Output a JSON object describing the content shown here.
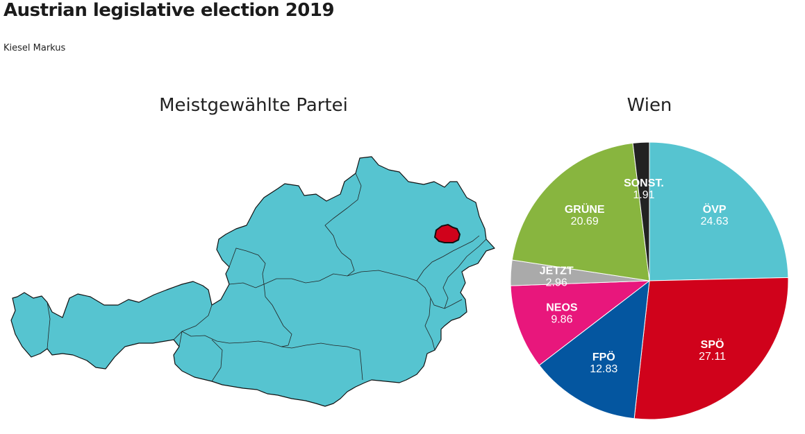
{
  "header": {
    "title": "Austrian legislative election 2019",
    "author": "Kiesel Markus"
  },
  "map": {
    "title": "Meistgewählte Partei",
    "base_color": "#56c4d0",
    "highlight_color": "#d0021b",
    "highlight_region": "Wien"
  },
  "chart_data": {
    "type": "pie",
    "title": "Wien",
    "slices": [
      {
        "name": "ÖVP",
        "value": 24.63,
        "color": "#56c4d0"
      },
      {
        "name": "SPÖ",
        "value": 27.11,
        "color": "#d0021b"
      },
      {
        "name": "FPÖ",
        "value": 12.83,
        "color": "#0456a0"
      },
      {
        "name": "NEOS",
        "value": 9.86,
        "color": "#e8177c"
      },
      {
        "name": "JETZT",
        "value": 2.96,
        "color": "#aaaaaa"
      },
      {
        "name": "GRÜNE",
        "value": 20.69,
        "color": "#88b53f"
      },
      {
        "name": "SONST.",
        "value": 1.91,
        "color": "#222222"
      }
    ]
  }
}
